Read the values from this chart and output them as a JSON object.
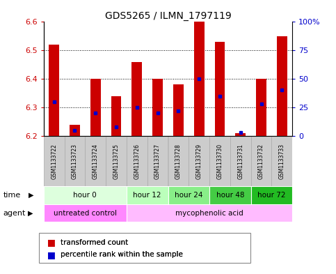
{
  "title": "GDS5265 / ILMN_1797119",
  "samples": [
    "GSM1133722",
    "GSM1133723",
    "GSM1133724",
    "GSM1133725",
    "GSM1133726",
    "GSM1133727",
    "GSM1133728",
    "GSM1133729",
    "GSM1133730",
    "GSM1133731",
    "GSM1133732",
    "GSM1133733"
  ],
  "transformed_count": [
    6.52,
    6.24,
    6.4,
    6.34,
    6.46,
    6.4,
    6.38,
    6.6,
    6.53,
    6.21,
    6.4,
    6.55
  ],
  "percentile_rank": [
    30,
    5,
    20,
    8,
    25,
    20,
    22,
    50,
    35,
    3,
    28,
    40
  ],
  "bar_base": 6.2,
  "ylim": [
    6.2,
    6.6
  ],
  "y2lim": [
    0,
    100
  ],
  "y2ticks": [
    0,
    25,
    50,
    75,
    100
  ],
  "y2ticklabels": [
    "0",
    "25",
    "50",
    "75",
    "100%"
  ],
  "yticks": [
    6.2,
    6.3,
    6.4,
    6.5,
    6.6
  ],
  "bar_color": "#cc0000",
  "percentile_color": "#0000cc",
  "bar_width": 0.5,
  "time_groups": [
    {
      "label": "hour 0",
      "start": 0,
      "end": 4,
      "color": "#ddffdd"
    },
    {
      "label": "hour 12",
      "start": 4,
      "end": 6,
      "color": "#bbffbb"
    },
    {
      "label": "hour 24",
      "start": 6,
      "end": 8,
      "color": "#88ee88"
    },
    {
      "label": "hour 48",
      "start": 8,
      "end": 10,
      "color": "#44cc44"
    },
    {
      "label": "hour 72",
      "start": 10,
      "end": 12,
      "color": "#22bb22"
    }
  ],
  "agent_groups": [
    {
      "label": "untreated control",
      "start": 0,
      "end": 4,
      "color": "#ff88ff"
    },
    {
      "label": "mycophenolic acid",
      "start": 4,
      "end": 12,
      "color": "#ffbbff"
    }
  ],
  "legend_items": [
    {
      "label": "transformed count",
      "color": "#cc0000"
    },
    {
      "label": "percentile rank within the sample",
      "color": "#0000cc"
    }
  ],
  "xlabel_time": "time",
  "xlabel_agent": "agent",
  "bg_color": "#ffffff",
  "tick_color_left": "#cc0000",
  "tick_color_right": "#0000cc",
  "sample_box_color": "#cccccc",
  "sample_box_edgecolor": "#aaaaaa"
}
